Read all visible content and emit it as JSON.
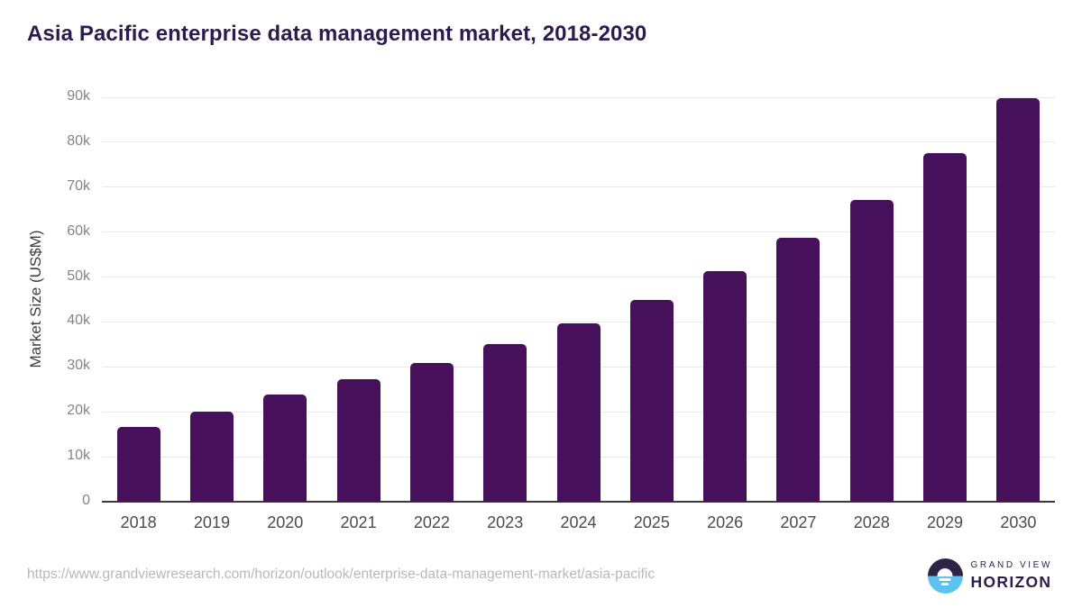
{
  "chart_data": {
    "type": "bar",
    "title": "Asia Pacific enterprise data management market, 2018-2030",
    "xlabel": "",
    "ylabel": "Market Size (US$M)",
    "unit": "US$M",
    "categories": [
      "2018",
      "2019",
      "2020",
      "2021",
      "2022",
      "2023",
      "2024",
      "2025",
      "2026",
      "2027",
      "2028",
      "2029",
      "2030"
    ],
    "values": [
      16700,
      20100,
      23900,
      27200,
      30800,
      35000,
      39600,
      45000,
      51300,
      58700,
      67100,
      77500,
      89700
    ],
    "ylim": [
      0,
      90000
    ],
    "yticks": [
      {
        "value": 0,
        "label": "0"
      },
      {
        "value": 10000,
        "label": "10k"
      },
      {
        "value": 20000,
        "label": "20k"
      },
      {
        "value": 30000,
        "label": "30k"
      },
      {
        "value": 40000,
        "label": "40k"
      },
      {
        "value": 50000,
        "label": "50k"
      },
      {
        "value": 60000,
        "label": "60k"
      },
      {
        "value": 70000,
        "label": "70k"
      },
      {
        "value": 80000,
        "label": "80k"
      },
      {
        "value": 90000,
        "label": "90k"
      }
    ],
    "grid": true,
    "legend": false,
    "bar_color": "#46105a"
  },
  "footer": {
    "url": "https://www.grandviewresearch.com/horizon/outlook/enterprise-data-management-market/asia-pacific",
    "logo": {
      "brand": "Grand View Horizon",
      "line1": "GRAND VIEW",
      "line2": "HORIZON"
    }
  },
  "colors": {
    "title": "#2d1b4e",
    "bar": "#46105a",
    "gridline": "#e9e9e9",
    "axis_line": "#3a3a3a",
    "y_tick_label": "#858585",
    "x_tick_label": "#4b4b4b",
    "url_text": "#b8b8b8",
    "logo_dark": "#2e2245",
    "logo_blue": "#5cc3f0"
  }
}
